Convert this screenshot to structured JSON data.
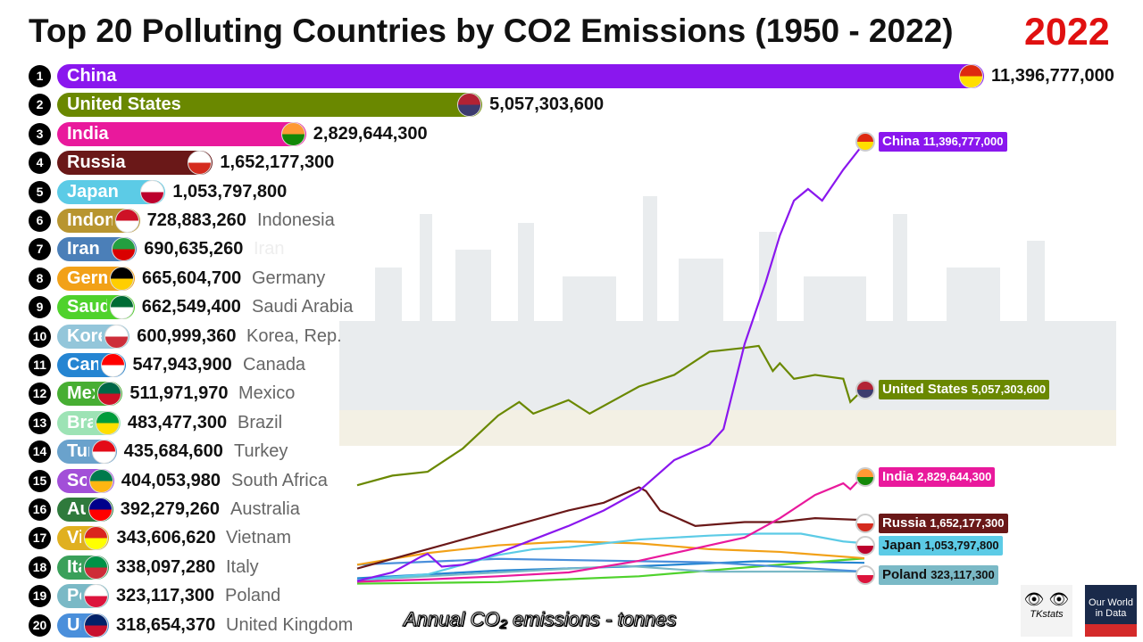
{
  "title": "Top 20 Polluting Countries by CO2 Emissions (1950 - 2022)",
  "year": "2022",
  "caption": "Annual CO₂ emissions - tonnes",
  "logos": {
    "left": "TKstats",
    "right_line1": "Our World",
    "right_line2": "in Data"
  },
  "chart_data": [
    {
      "type": "bar",
      "orientation": "horizontal",
      "title": "Top 20 Polluting Countries by CO2 Emissions (1950 - 2022)",
      "year": 2022,
      "categories": [
        "China",
        "United States",
        "India",
        "Russia",
        "Japan",
        "Indonesia",
        "Iran",
        "Germany",
        "Saudi Arabia",
        "Korea, Rep.",
        "Canada",
        "Mexico",
        "Brazil",
        "Turkey",
        "South Africa",
        "Australia",
        "Vietnam",
        "Italy",
        "Poland",
        "United Kingdom"
      ],
      "values": [
        11396777000,
        5057303600,
        2829644300,
        1652177300,
        1053797800,
        728883260,
        690635260,
        665604700,
        662549400,
        600999360,
        547943900,
        511971970,
        483477300,
        435684600,
        404053980,
        392279260,
        343606620,
        338097280,
        323117300,
        318654370
      ],
      "labels": [
        "11,396,777,000",
        "5,057,303,600",
        "2,829,644,300",
        "1,652,177,300",
        "1,053,797,800",
        "728,883,260",
        "690,635,260",
        "665,604,700",
        "662,549,400",
        "600,999,360",
        "547,943,900",
        "511,971,970",
        "483,477,300",
        "435,684,600",
        "404,053,980",
        "392,279,260",
        "343,606,620",
        "338,097,280",
        "323,117,300",
        "318,654,370"
      ],
      "ranks": [
        "1",
        "2",
        "3",
        "4",
        "5",
        "6",
        "7",
        "8",
        "9",
        "10",
        "11",
        "12",
        "13",
        "14",
        "15",
        "16",
        "17",
        "18",
        "19",
        "20"
      ],
      "colors": [
        "#8a17ee",
        "#6a8800",
        "#e9199c",
        "#6a1818",
        "#5ccbe6",
        "#b89530",
        "#4b7fb8",
        "#f2a118",
        "#4fd22c",
        "#93c6da",
        "#2585d2",
        "#47ae33",
        "#9de3b5",
        "#6aa2cc",
        "#a24fd8",
        "#2f7a3c",
        "#e0b020",
        "#3aa05a",
        "#7ab9c6",
        "#4a8fdb"
      ],
      "flag_colors": [
        [
          "#de2910",
          "#ffde00"
        ],
        [
          "#b22234",
          "#3c3b6e"
        ],
        [
          "#ff9933",
          "#138808"
        ],
        [
          "#ffffff",
          "#d52b1e"
        ],
        [
          "#ffffff",
          "#bc002d"
        ],
        [
          "#ce1126",
          "#ffffff"
        ],
        [
          "#239f40",
          "#da0000"
        ],
        [
          "#000000",
          "#ffce00"
        ],
        [
          "#006c35",
          "#ffffff"
        ],
        [
          "#ffffff",
          "#cd2e3a"
        ],
        [
          "#ff0000",
          "#ffffff"
        ],
        [
          "#006847",
          "#ce1126"
        ],
        [
          "#009c3b",
          "#ffdf00"
        ],
        [
          "#e30a17",
          "#ffffff"
        ],
        [
          "#007a4d",
          "#ffb612"
        ],
        [
          "#00008b",
          "#ff0000"
        ],
        [
          "#da251d",
          "#ffff00"
        ],
        [
          "#009246",
          "#ce2b37"
        ],
        [
          "#ffffff",
          "#dc143c"
        ],
        [
          "#012169",
          "#c8102e"
        ]
      ]
    },
    {
      "type": "line",
      "xlim": [
        1950,
        2022
      ],
      "ylim": [
        0,
        11396777000
      ],
      "unit": "tonnes",
      "grid": false,
      "series": [
        {
          "name": "China",
          "color": "#8a17ee",
          "label": "11,396,777,000",
          "x": [
            1950,
            1955,
            1959,
            1960,
            1962,
            1965,
            1970,
            1975,
            1980,
            1985,
            1990,
            1995,
            2000,
            2002,
            2005,
            2008,
            2010,
            2012,
            2014,
            2016,
            2019,
            2022
          ],
          "y": [
            80000000,
            300000000,
            700000000,
            780000000,
            450000000,
            500000000,
            800000000,
            1150000000,
            1500000000,
            1900000000,
            2400000000,
            3200000000,
            3600000000,
            4000000000,
            6200000000,
            7800000000,
            9000000000,
            9900000000,
            10200000000,
            9900000000,
            10700000000,
            11396777000
          ]
        },
        {
          "name": "United States",
          "color": "#6a8800",
          "label": "5,057,303,600",
          "x": [
            1950,
            1955,
            1960,
            1965,
            1970,
            1973,
            1975,
            1980,
            1983,
            1988,
            1990,
            1995,
            2000,
            2005,
            2007,
            2009,
            2010,
            2012,
            2015,
            2019,
            2020,
            2022
          ],
          "y": [
            2550000000,
            2800000000,
            2900000000,
            3500000000,
            4350000000,
            4700000000,
            4400000000,
            4750000000,
            4400000000,
            4900000000,
            5100000000,
            5400000000,
            6000000000,
            6100000000,
            6150000000,
            5500000000,
            5700000000,
            5300000000,
            5400000000,
            5300000000,
            4700000000,
            5057303600
          ]
        },
        {
          "name": "India",
          "color": "#e9199c",
          "label": "2,829,644,300",
          "x": [
            1950,
            1960,
            1970,
            1980,
            1990,
            2000,
            2005,
            2010,
            2015,
            2019,
            2020,
            2022
          ],
          "y": [
            60000000,
            120000000,
            200000000,
            300000000,
            600000000,
            1000000000,
            1200000000,
            1700000000,
            2300000000,
            2600000000,
            2450000000,
            2829644300
          ]
        },
        {
          "name": "Russia",
          "color": "#6a1818",
          "label": "1,652,177,300",
          "x": [
            1950,
            1960,
            1970,
            1980,
            1985,
            1990,
            1991,
            1993,
            1998,
            2005,
            2010,
            2015,
            2022
          ],
          "y": [
            400000000,
            900000000,
            1400000000,
            1900000000,
            2100000000,
            2500000000,
            2400000000,
            1900000000,
            1500000000,
            1600000000,
            1600000000,
            1700000000,
            1652177300
          ]
        },
        {
          "name": "Japan",
          "color": "#5ccbe6",
          "label": "1,053,797,800",
          "x": [
            1950,
            1960,
            1970,
            1975,
            1980,
            1990,
            2000,
            2007,
            2013,
            2019,
            2022
          ],
          "y": [
            100000000,
            250000000,
            750000000,
            900000000,
            950000000,
            1150000000,
            1250000000,
            1300000000,
            1300000000,
            1100000000,
            1053797800
          ]
        },
        {
          "name": "Germany",
          "color": "#f2a118",
          "label": "665,604,700",
          "x": [
            1950,
            1960,
            1970,
            1980,
            1990,
            2000,
            2010,
            2022
          ],
          "y": [
            500000000,
            800000000,
            1000000000,
            1100000000,
            1050000000,
            900000000,
            830000000,
            665604700
          ]
        },
        {
          "name": "United Kingdom",
          "color": "#4a8fdb",
          "label": "318,654,370",
          "x": [
            1950,
            1970,
            2000,
            2022
          ],
          "y": [
            500000000,
            650000000,
            560000000,
            318654370
          ]
        },
        {
          "name": "Poland",
          "color": "#7ab9c6",
          "label": "323,117,300",
          "x": [
            1950,
            1970,
            1988,
            2000,
            2022
          ],
          "y": [
            100000000,
            300000000,
            470000000,
            320000000,
            323117300
          ]
        },
        {
          "name": "Saudi Arabia",
          "color": "#4fd22c",
          "label": "662,549,400",
          "x": [
            1950,
            1970,
            1990,
            2010,
            2022
          ],
          "y": [
            10000000,
            50000000,
            200000000,
            500000000,
            662549400
          ]
        },
        {
          "name": "Canada",
          "color": "#2585d2",
          "label": "547,943,900",
          "x": [
            1950,
            1970,
            1990,
            2007,
            2022
          ],
          "y": [
            150000000,
            350000000,
            460000000,
            590000000,
            547943900
          ]
        }
      ],
      "visible_labels": [
        "China",
        "United States",
        "India",
        "Russia",
        "Japan",
        "Poland"
      ]
    }
  ]
}
